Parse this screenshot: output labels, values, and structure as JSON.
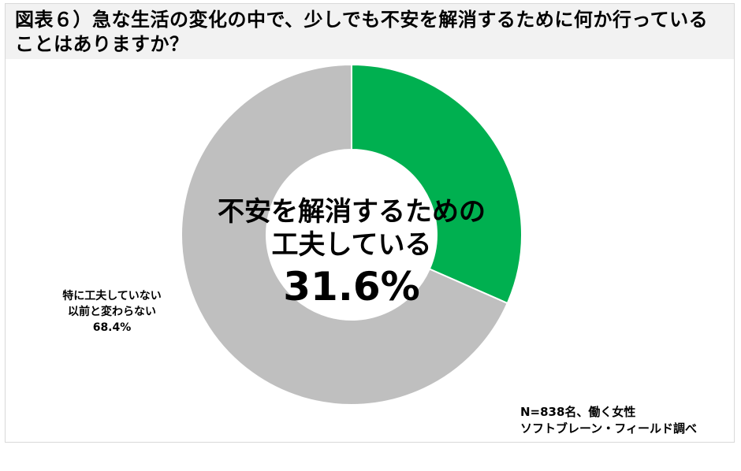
{
  "title": "図表６）急な生活の変化の中で、少しでも不安を解消するために何か行っていることはありますか？",
  "center": {
    "label_line1": "不安を解消するための",
    "label_line2": "工夫している",
    "percent": "31.6%"
  },
  "outer_label": {
    "line1": "特に工夫していない",
    "line2": "以前と変わらない",
    "percent": "68.4%"
  },
  "note": {
    "line1": "N=838名、働く女性",
    "line2": "ソフトブレーン・フィールド調べ"
  },
  "colors": {
    "green": "#00b050",
    "gray": "#bfbfbf",
    "header_bg": "#f2f2f2"
  },
  "chart_data": {
    "type": "pie",
    "subtype": "donut",
    "title": "図表６）急な生活の変化の中で、少しでも不安を解消するために何か行っていることはありますか？",
    "categories": [
      "不安を解消するための工夫している",
      "特に工夫していない 以前と変わらない"
    ],
    "values": [
      31.6,
      68.4
    ],
    "unit": "%",
    "colors": [
      "#00b050",
      "#bfbfbf"
    ],
    "start_angle": "12 o'clock, clockwise",
    "annotations": [
      "N=838名、働く女性",
      "ソフトブレーン・フィールド調べ"
    ],
    "legend": "none (labels inline)"
  }
}
